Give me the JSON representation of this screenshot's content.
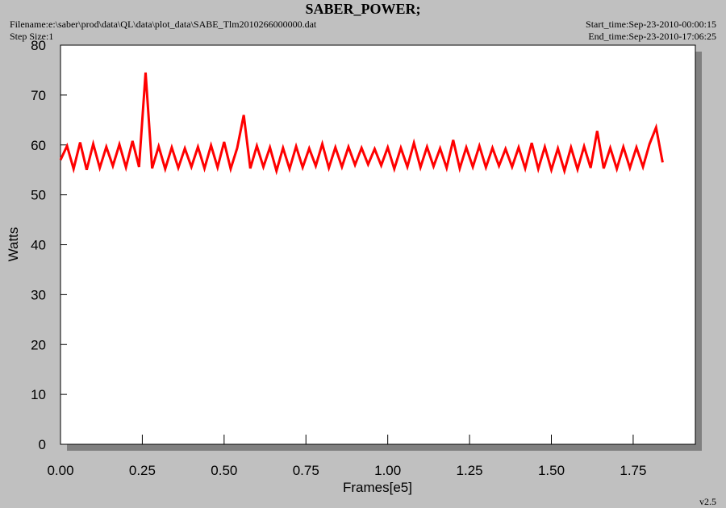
{
  "chart_data": {
    "type": "line",
    "title": "SABER_POWER;",
    "filename": "Filename:e:\\saber\\prod\\data\\QL\\data\\plot_data\\SABE_Tlm2010266000000.dat",
    "step_size": "Step Size:1",
    "start_time": "Start_time:Sep-23-2010-00:00:15",
    "end_time": "End_time:Sep-23-2010-17:06:25",
    "version": "v2.5",
    "x_label": "Frames[e5]",
    "y_label": "Watts",
    "xlim": [
      0,
      1.94
    ],
    "ylim": [
      0,
      80
    ],
    "xticks": [
      {
        "value": 0,
        "label": "0.00"
      },
      0.25,
      {
        "value": 0.5,
        "label": "0.50"
      },
      0.75,
      {
        "value": 1,
        "label": "1.00"
      },
      1.25,
      {
        "value": 1.5,
        "label": "1.50"
      },
      1.75
    ],
    "yticks": [
      0,
      10,
      20,
      30,
      40,
      50,
      60,
      70,
      80
    ],
    "series": [
      {
        "color": "#ff0000",
        "x": [
          0,
          0.02,
          0.04,
          0.06,
          0.08,
          0.1,
          0.12,
          0.14,
          0.16,
          0.18,
          0.2,
          0.22,
          0.24,
          0.26,
          0.28,
          0.3,
          0.32,
          0.34,
          0.36,
          0.38,
          0.4,
          0.42,
          0.44,
          0.46,
          0.48,
          0.5,
          0.52,
          0.54,
          0.56,
          0.58,
          0.6,
          0.62,
          0.64,
          0.66,
          0.68,
          0.7,
          0.72,
          0.74,
          0.76,
          0.78,
          0.8,
          0.82,
          0.84,
          0.86,
          0.88,
          0.9,
          0.92,
          0.94,
          0.96,
          0.98,
          1,
          1.02,
          1.04,
          1.06,
          1.08,
          1.1,
          1.12,
          1.14,
          1.16,
          1.18,
          1.2,
          1.22,
          1.24,
          1.26,
          1.28,
          1.3,
          1.32,
          1.34,
          1.36,
          1.38,
          1.4,
          1.42,
          1.44,
          1.46,
          1.48,
          1.5,
          1.52,
          1.54,
          1.56,
          1.58,
          1.6,
          1.62,
          1.64,
          1.66,
          1.68,
          1.7,
          1.72,
          1.74,
          1.76,
          1.78,
          1.8,
          1.82,
          1.84
        ],
        "values": [
          57,
          59.8,
          55.2,
          60.5,
          55,
          60.2,
          55.4,
          59.6,
          55.8,
          60.1,
          55.5,
          60.8,
          55.6,
          74.5,
          55.3,
          59.7,
          55.2,
          59.5,
          55.4,
          59.3,
          55.6,
          59.6,
          55.3,
          59.9,
          55.5,
          60.6,
          55.2,
          59.4,
          66,
          55.3,
          59.8,
          55.6,
          59.5,
          54.8,
          59.4,
          55.2,
          59.7,
          55.5,
          59.3,
          55.8,
          60.2,
          55.4,
          59.5,
          55.6,
          59.6,
          56,
          59.4,
          56.1,
          59.2,
          55.9,
          59.5,
          55.2,
          59.4,
          55.6,
          60.4,
          55.5,
          59.6,
          55.7,
          59.3,
          55.4,
          61,
          55.3,
          59.5,
          55.6,
          59.8,
          55.5,
          59.4,
          55.8,
          59.2,
          55.6,
          59.5,
          55.3,
          60.4,
          55.2,
          59.6,
          55,
          59.3,
          54.8,
          59.5,
          55.1,
          59.7,
          55.4,
          62.8,
          55.3,
          59.4,
          55.2,
          59.6,
          55.4,
          59.5,
          55.6,
          60.2,
          63.5,
          56.5
        ]
      }
    ]
  }
}
